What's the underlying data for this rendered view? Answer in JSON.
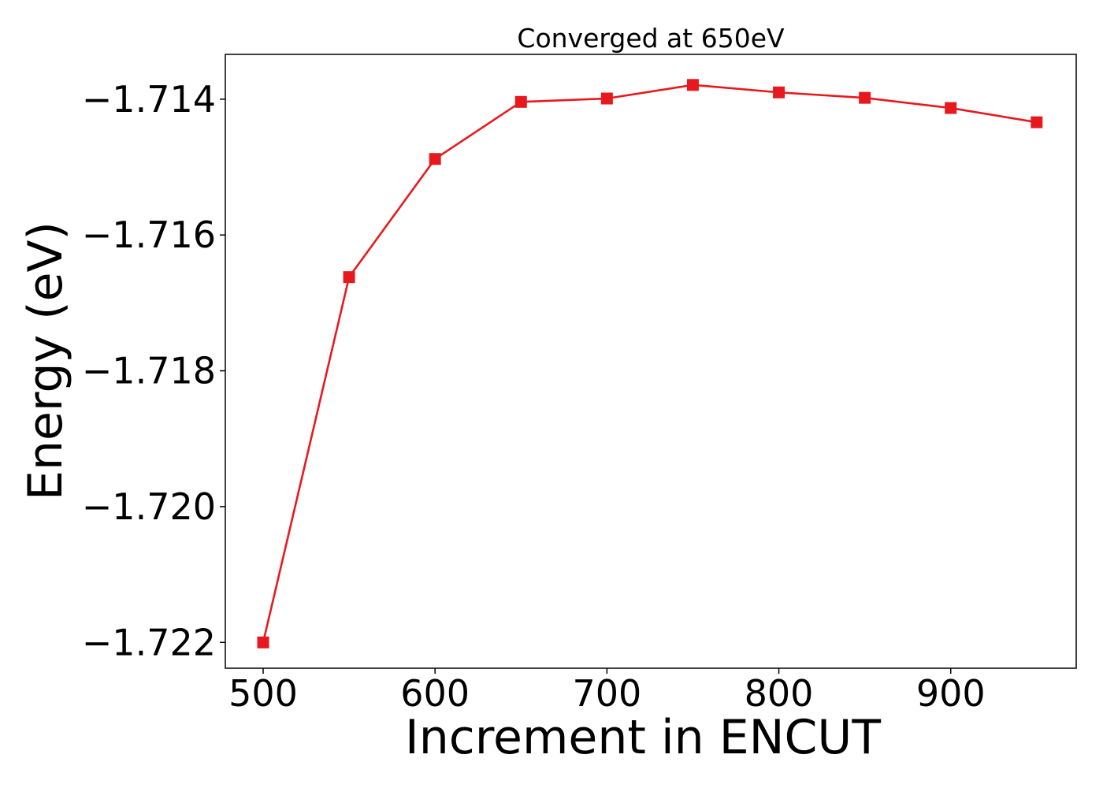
{
  "chart_data": {
    "type": "line",
    "title": "Converged at 650eV",
    "xlabel": "Increment in ENCUT",
    "ylabel": "Energy (eV)",
    "xlim": [
      478,
      973
    ],
    "ylim": [
      -1.72238,
      -1.71334
    ],
    "xticks": [
      500,
      600,
      700,
      800,
      900
    ],
    "xtick_labels": [
      "500",
      "600",
      "700",
      "800",
      "900"
    ],
    "yticks": [
      -1.714,
      -1.716,
      -1.718,
      -1.72,
      -1.722
    ],
    "ytick_labels": [
      "−1.714",
      "−1.716",
      "−1.718",
      "−1.720",
      "−1.722"
    ],
    "grid": false,
    "series": [
      {
        "color": "#e8191e",
        "marker": "square",
        "x": [
          500,
          550,
          600,
          650,
          700,
          750,
          800,
          850,
          900,
          950
        ],
        "y": [
          -1.722,
          -1.71662,
          -1.71488,
          -1.71404,
          -1.71399,
          -1.71379,
          -1.7139,
          -1.71398,
          -1.71413,
          -1.71434
        ]
      }
    ]
  }
}
